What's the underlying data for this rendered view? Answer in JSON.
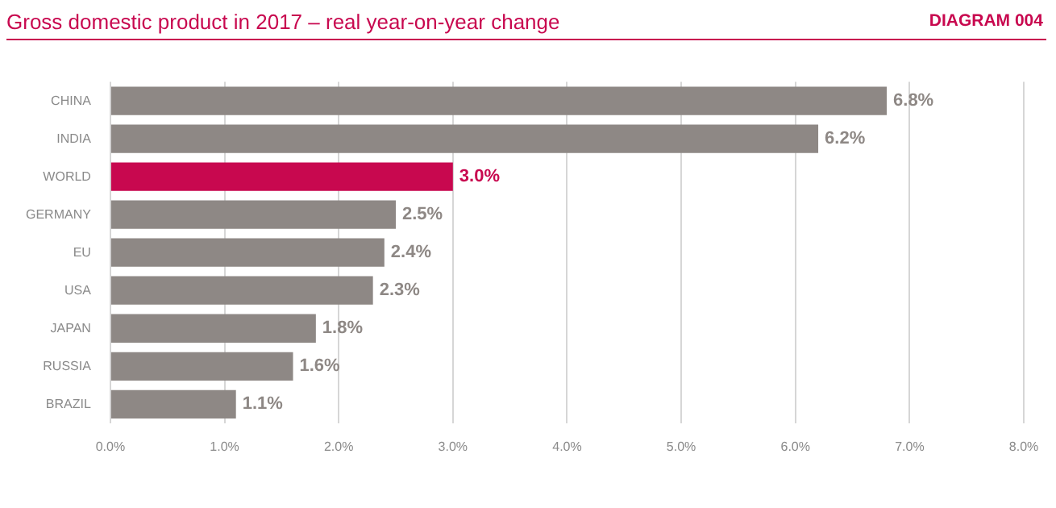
{
  "chart_data": {
    "type": "bar",
    "orientation": "horizontal",
    "title": "Gross domestic product in 2017 – real year-on-year change",
    "annotations": [
      "DIAGRAM 004"
    ],
    "categories": [
      "CHINA",
      "INDIA",
      "WORLD",
      "GERMANY",
      "EU",
      "USA",
      "JAPAN",
      "RUSSIA",
      "BRAZIL"
    ],
    "values": [
      6.8,
      6.2,
      3.0,
      2.5,
      2.4,
      2.3,
      1.8,
      1.6,
      1.1
    ],
    "colors": [
      "#8e8885",
      "#8e8885",
      "#c8084f",
      "#8e8885",
      "#8e8885",
      "#8e8885",
      "#8e8885",
      "#8e8885",
      "#8e8885"
    ],
    "value_labels": [
      "6.8%",
      "6.2%",
      "3.0%",
      "2.5%",
      "2.4%",
      "2.3%",
      "1.8%",
      "1.6%",
      "1.1%"
    ],
    "xlim": [
      0,
      8
    ],
    "xticks": [
      {
        "value": 0,
        "label": "0.0%"
      },
      {
        "value": 1,
        "label": "1.0%"
      },
      {
        "value": 2,
        "label": "2.0%"
      },
      {
        "value": 3,
        "label": "3.0%"
      },
      {
        "value": 4,
        "label": "4.0%"
      },
      {
        "value": 5,
        "label": "5.0%"
      },
      {
        "value": 6,
        "label": "6.0%"
      },
      {
        "value": 7,
        "label": "7.0%"
      },
      {
        "value": 8,
        "label": "8.0%"
      }
    ],
    "grid": "x",
    "legend": false
  }
}
